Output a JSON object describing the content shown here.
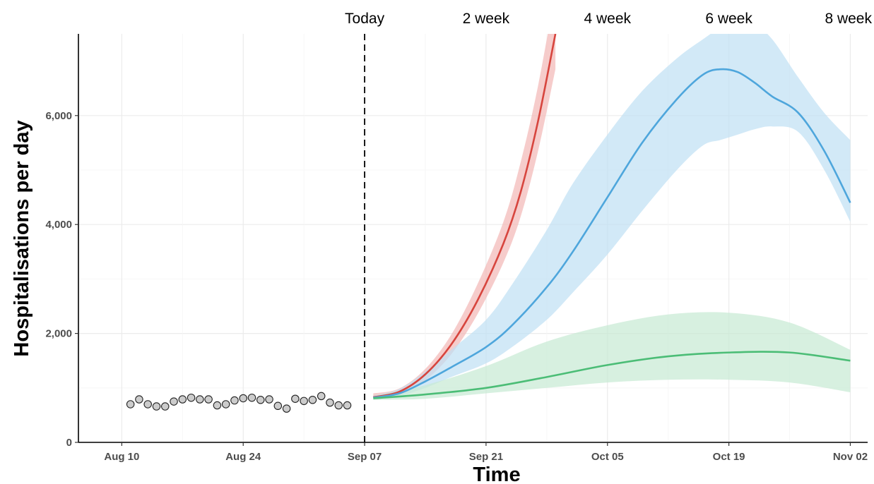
{
  "chart_data": {
    "type": "line",
    "title": "",
    "xlabel": "Time",
    "ylabel": "Hospitalisations per day",
    "x_range": [
      "2021-08-05",
      "2021-11-04"
    ],
    "ylim": [
      0,
      7500
    ],
    "grid": true,
    "legend": "none",
    "x_ticks": [
      {
        "date": "2021-08-10",
        "label": "Aug 10"
      },
      {
        "date": "2021-08-24",
        "label": "Aug 24"
      },
      {
        "date": "2021-09-07",
        "label": "Sep 07"
      },
      {
        "date": "2021-09-21",
        "label": "Sep 21"
      },
      {
        "date": "2021-10-05",
        "label": "Oct 05"
      },
      {
        "date": "2021-10-19",
        "label": "Oct 19"
      },
      {
        "date": "2021-11-02",
        "label": "Nov 02"
      }
    ],
    "y_ticks": [
      {
        "value": 0,
        "label": "0"
      },
      {
        "value": 2000,
        "label": "2,000"
      },
      {
        "value": 4000,
        "label": "4,000"
      },
      {
        "value": 6000,
        "label": "6,000"
      }
    ],
    "reference_line": {
      "date": "2021-09-07",
      "style": "dashed"
    },
    "top_labels": [
      {
        "date": "2021-09-07",
        "label": "Today"
      },
      {
        "date": "2021-09-21",
        "label": "2 week"
      },
      {
        "date": "2021-10-05",
        "label": "4 week"
      },
      {
        "date": "2021-10-19",
        "label": "6 week"
      },
      {
        "date": "2021-11-02",
        "label": "8 week"
      }
    ],
    "observed": {
      "marker": "circle",
      "color": "#cccccc",
      "points": [
        {
          "date": "2021-08-11",
          "y": 700
        },
        {
          "date": "2021-08-12",
          "y": 790
        },
        {
          "date": "2021-08-13",
          "y": 700
        },
        {
          "date": "2021-08-14",
          "y": 660
        },
        {
          "date": "2021-08-15",
          "y": 660
        },
        {
          "date": "2021-08-16",
          "y": 750
        },
        {
          "date": "2021-08-17",
          "y": 790
        },
        {
          "date": "2021-08-18",
          "y": 820
        },
        {
          "date": "2021-08-19",
          "y": 790
        },
        {
          "date": "2021-08-20",
          "y": 790
        },
        {
          "date": "2021-08-21",
          "y": 680
        },
        {
          "date": "2021-08-22",
          "y": 700
        },
        {
          "date": "2021-08-23",
          "y": 770
        },
        {
          "date": "2021-08-24",
          "y": 810
        },
        {
          "date": "2021-08-25",
          "y": 820
        },
        {
          "date": "2021-08-26",
          "y": 780
        },
        {
          "date": "2021-08-27",
          "y": 790
        },
        {
          "date": "2021-08-28",
          "y": 670
        },
        {
          "date": "2021-08-29",
          "y": 620
        },
        {
          "date": "2021-08-30",
          "y": 800
        },
        {
          "date": "2021-08-31",
          "y": 760
        },
        {
          "date": "2021-09-01",
          "y": 780
        },
        {
          "date": "2021-09-02",
          "y": 850
        },
        {
          "date": "2021-09-03",
          "y": 730
        },
        {
          "date": "2021-09-04",
          "y": 680
        },
        {
          "date": "2021-09-05",
          "y": 680
        }
      ]
    },
    "series": [
      {
        "color": "#d7453e",
        "band_color": "#f2b6b5",
        "points": [
          {
            "date": "2021-09-08",
            "y": 830,
            "lo": 800,
            "hi": 900
          },
          {
            "date": "2021-09-11",
            "y": 930,
            "lo": 870,
            "hi": 990
          },
          {
            "date": "2021-09-14",
            "y": 1250,
            "lo": 1140,
            "hi": 1350
          },
          {
            "date": "2021-09-17",
            "y": 1800,
            "lo": 1620,
            "hi": 1980
          },
          {
            "date": "2021-09-20",
            "y": 2600,
            "lo": 2350,
            "hi": 2900
          },
          {
            "date": "2021-09-23",
            "y": 3650,
            "lo": 3300,
            "hi": 4050
          },
          {
            "date": "2021-09-25",
            "y": 4600,
            "lo": 4150,
            "hi": 5150
          },
          {
            "date": "2021-09-27",
            "y": 5900,
            "lo": 5350,
            "hi": 6550
          },
          {
            "date": "2021-09-29",
            "y": 7500,
            "lo": 6850,
            "hi": 8300
          }
        ]
      },
      {
        "color": "#4ea6dc",
        "band_color": "#bfdff4",
        "points": [
          {
            "date": "2021-09-08",
            "y": 820,
            "lo": 780,
            "hi": 860
          },
          {
            "date": "2021-09-11",
            "y": 900,
            "lo": 850,
            "hi": 980
          },
          {
            "date": "2021-09-14",
            "y": 1120,
            "lo": 1000,
            "hi": 1300
          },
          {
            "date": "2021-09-17",
            "y": 1380,
            "lo": 1200,
            "hi": 1700
          },
          {
            "date": "2021-09-21",
            "y": 1750,
            "lo": 1450,
            "hi": 2250
          },
          {
            "date": "2021-09-24",
            "y": 2150,
            "lo": 1750,
            "hi": 2900
          },
          {
            "date": "2021-09-28",
            "y": 2850,
            "lo": 2250,
            "hi": 3900
          },
          {
            "date": "2021-10-01",
            "y": 3500,
            "lo": 2750,
            "hi": 4750
          },
          {
            "date": "2021-10-05",
            "y": 4500,
            "lo": 3450,
            "hi": 5650
          },
          {
            "date": "2021-10-09",
            "y": 5500,
            "lo": 4250,
            "hi": 6450
          },
          {
            "date": "2021-10-13",
            "y": 6300,
            "lo": 5000,
            "hi": 7050
          },
          {
            "date": "2021-10-16",
            "y": 6750,
            "lo": 5450,
            "hi": 7400
          },
          {
            "date": "2021-10-18",
            "y": 6850,
            "lo": 5550,
            "hi": 7600
          },
          {
            "date": "2021-10-20",
            "y": 6800,
            "lo": 5650,
            "hi": 7650
          },
          {
            "date": "2021-10-22",
            "y": 6600,
            "lo": 5750,
            "hi": 7650
          },
          {
            "date": "2021-10-24",
            "y": 6350,
            "lo": 5800,
            "hi": 7400
          },
          {
            "date": "2021-10-27",
            "y": 6050,
            "lo": 5700,
            "hi": 6700
          },
          {
            "date": "2021-10-30",
            "y": 5350,
            "lo": 5000,
            "hi": 6050
          },
          {
            "date": "2021-11-02",
            "y": 4400,
            "lo": 4050,
            "hi": 5550
          }
        ]
      },
      {
        "color": "#4bbd76",
        "band_color": "#c6ead3",
        "points": [
          {
            "date": "2021-09-08",
            "y": 810,
            "lo": 780,
            "hi": 850
          },
          {
            "date": "2021-09-14",
            "y": 880,
            "lo": 800,
            "hi": 1050
          },
          {
            "date": "2021-09-21",
            "y": 1000,
            "lo": 900,
            "hi": 1400
          },
          {
            "date": "2021-09-28",
            "y": 1200,
            "lo": 1000,
            "hi": 1850
          },
          {
            "date": "2021-10-05",
            "y": 1420,
            "lo": 1100,
            "hi": 2150
          },
          {
            "date": "2021-10-12",
            "y": 1580,
            "lo": 1150,
            "hi": 2350
          },
          {
            "date": "2021-10-19",
            "y": 1650,
            "lo": 1150,
            "hi": 2380
          },
          {
            "date": "2021-10-26",
            "y": 1650,
            "lo": 1100,
            "hi": 2200
          },
          {
            "date": "2021-11-02",
            "y": 1500,
            "lo": 920,
            "hi": 1700
          }
        ]
      }
    ]
  }
}
